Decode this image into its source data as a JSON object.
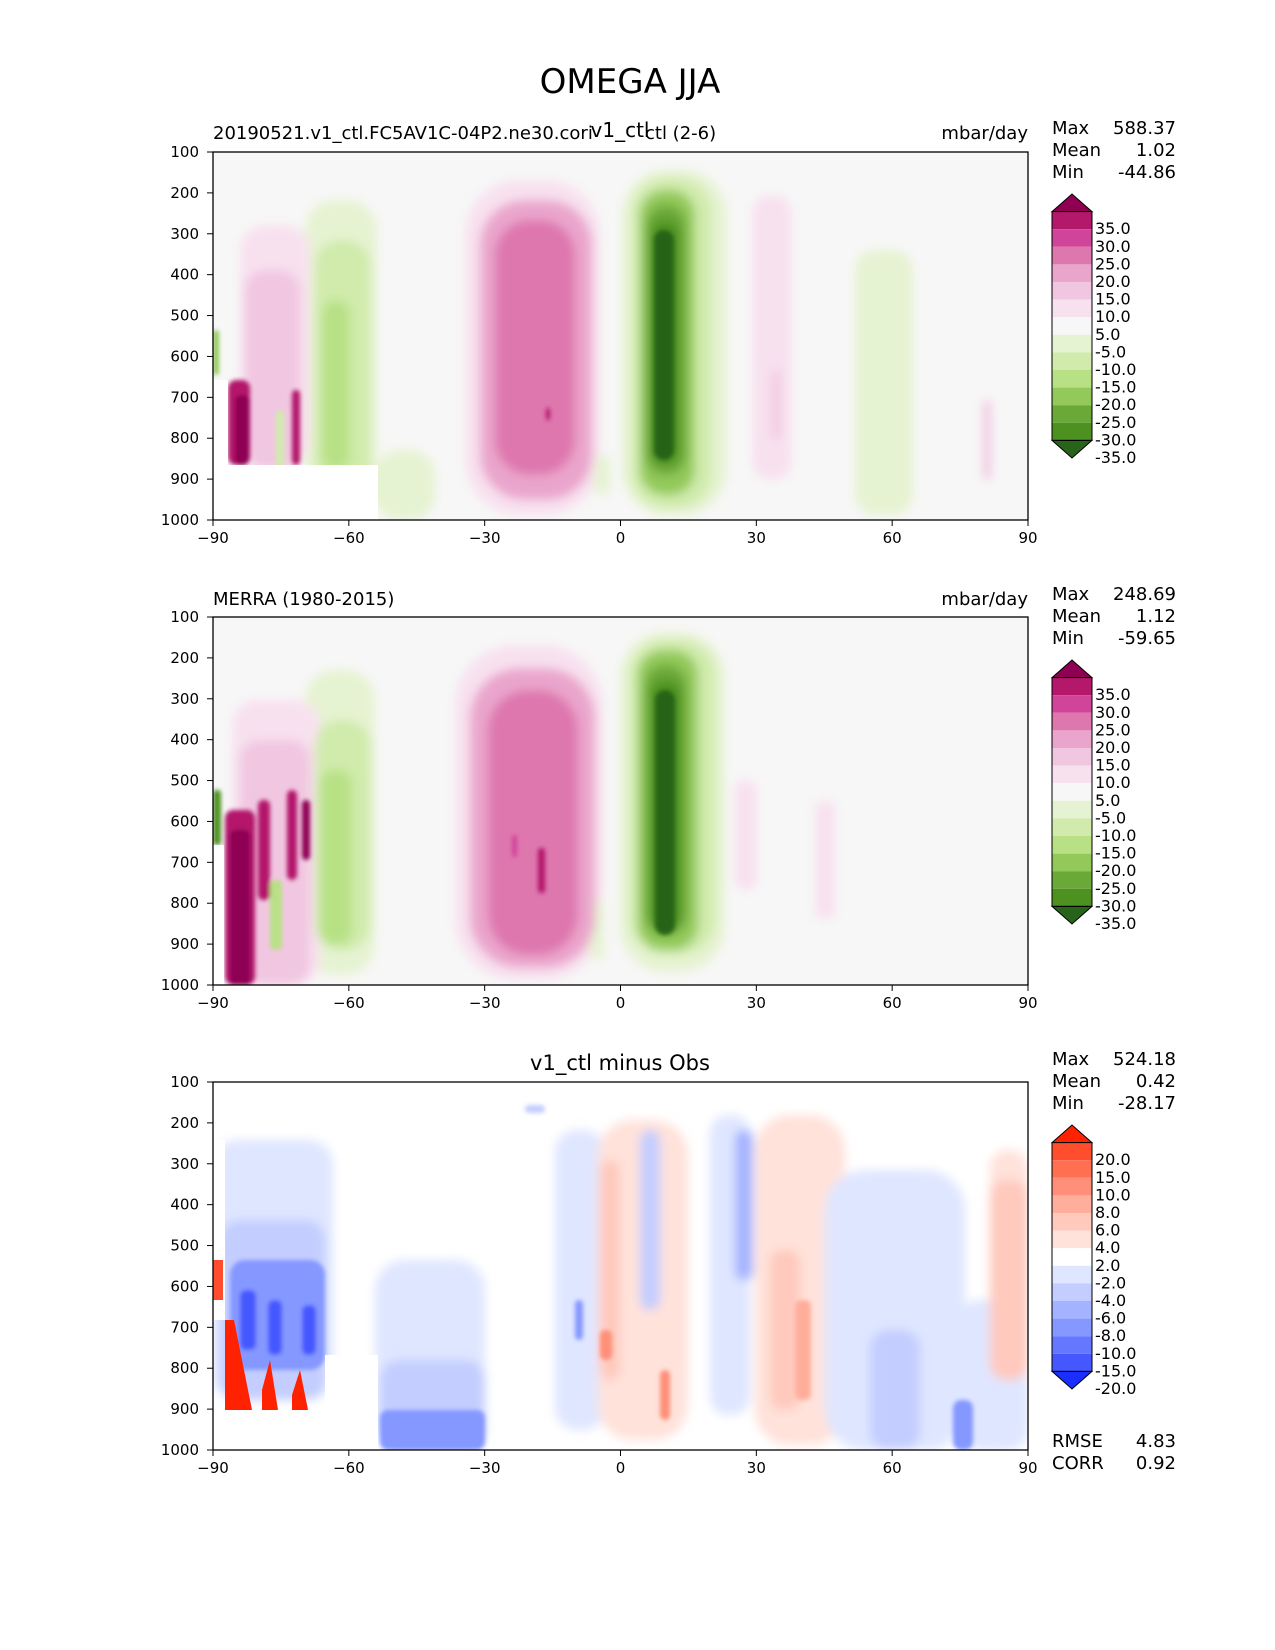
{
  "figure_title": "OMEGA JJA",
  "panels": [
    {
      "id": "model",
      "title_left_a": "20190521.v1_ctl.FC5AV1C-04P2.ne30.cori",
      "title_left_b": "ctl (2-6)",
      "title_center": "v1_ctl",
      "title_right": "mbar/day",
      "stats": [
        {
          "label": "Max",
          "value": "588.37"
        },
        {
          "label": "Mean",
          "value": "1.02"
        },
        {
          "label": "Min",
          "value": "-44.86"
        }
      ],
      "colorbar": "wet"
    },
    {
      "id": "obs",
      "title_left_a": "MERRA (1980-2015)",
      "title_left_b": "",
      "title_center": "",
      "title_right": "mbar/day",
      "stats": [
        {
          "label": "Max",
          "value": "248.69"
        },
        {
          "label": "Mean",
          "value": "1.12"
        },
        {
          "label": "Min",
          "value": "-59.65"
        }
      ],
      "colorbar": "wet"
    },
    {
      "id": "diff",
      "title_left_a": "",
      "title_left_b": "",
      "title_center": "v1_ctl minus Obs",
      "title_right": "",
      "stats": [
        {
          "label": "Max",
          "value": "524.18"
        },
        {
          "label": "Mean",
          "value": "0.42"
        },
        {
          "label": "Min",
          "value": "-28.17"
        }
      ],
      "extra_stats": [
        {
          "label": "RMSE",
          "value": "4.83"
        },
        {
          "label": "CORR",
          "value": "0.92"
        }
      ],
      "colorbar": "diff"
    }
  ],
  "colorbars": {
    "wet": {
      "labels": [
        "35.0",
        "30.0",
        "25.0",
        "20.0",
        "15.0",
        "10.0",
        "5.0",
        "-5.0",
        "-10.0",
        "-15.0",
        "-20.0",
        "-25.0",
        "-30.0",
        "-35.0"
      ],
      "colors": [
        "#8e0152",
        "#b3186a",
        "#d0449a",
        "#de77ae",
        "#eaa5cc",
        "#f1c6e1",
        "#f8e1ef",
        "#f7f7f7",
        "#e6f3d2",
        "#d0ebac",
        "#b8e186",
        "#93c95a",
        "#6aa838",
        "#4d9221",
        "#276419"
      ]
    },
    "diff": {
      "labels": [
        "20.0",
        "15.0",
        "10.0",
        "8.0",
        "6.0",
        "4.0",
        "2.0",
        "-2.0",
        "-4.0",
        "-6.0",
        "-8.0",
        "-10.0",
        "-15.0",
        "-20.0"
      ],
      "colors": [
        "#ff2200",
        "#ff4d2e",
        "#ff6f52",
        "#ff8f78",
        "#ffae9c",
        "#ffc9bd",
        "#ffe2da",
        "#ffffff",
        "#dfe6ff",
        "#c3cdff",
        "#a4b3ff",
        "#8598ff",
        "#6677ff",
        "#4558ff",
        "#1a2eff"
      ]
    }
  },
  "chart_data": [
    {
      "type": "heatmap",
      "title": "v1_ctl",
      "units": "mbar/day",
      "x_ticks": [
        "−90",
        "−60",
        "−30",
        "0",
        "30",
        "60",
        "90"
      ],
      "y_ticks": [
        "100",
        "200",
        "300",
        "400",
        "500",
        "600",
        "700",
        "800",
        "900",
        "1000"
      ],
      "xlim": [
        -90,
        90
      ],
      "ylim": [
        1000,
        100
      ],
      "features": [
        {
          "lat": [
            -32,
            -12
          ],
          "p": [
            250,
            900
          ],
          "value": 25
        },
        {
          "lat": [
            5,
            12
          ],
          "p": [
            250,
            880
          ],
          "value": -35
        },
        {
          "lat": [
            -68,
            -62
          ],
          "p": [
            300,
            850
          ],
          "value": -20
        },
        {
          "lat": [
            -88,
            -84
          ],
          "p": [
            700,
            850
          ],
          "value": 35
        },
        {
          "lat": [
            28,
            36
          ],
          "p": [
            200,
            880
          ],
          "value": 5
        },
        {
          "lat": [
            51,
            60
          ],
          "p": [
            250,
            1000
          ],
          "value": -5
        }
      ]
    },
    {
      "type": "heatmap",
      "title": "MERRA (1980-2015)",
      "units": "mbar/day",
      "x_ticks": [
        "−90",
        "−60",
        "−30",
        "0",
        "30",
        "60",
        "90"
      ],
      "y_ticks": [
        "100",
        "200",
        "300",
        "400",
        "500",
        "600",
        "700",
        "800",
        "900",
        "1000"
      ],
      "xlim": [
        -90,
        90
      ],
      "ylim": [
        1000,
        100
      ],
      "features": [
        {
          "lat": [
            -32,
            -12
          ],
          "p": [
            250,
            900
          ],
          "value": 25
        },
        {
          "lat": [
            5,
            12
          ],
          "p": [
            250,
            900
          ],
          "value": -35
        },
        {
          "lat": [
            -68,
            -62
          ],
          "p": [
            300,
            850
          ],
          "value": -20
        },
        {
          "lat": [
            -89,
            -84
          ],
          "p": [
            650,
            1000
          ],
          "value": 35
        }
      ]
    },
    {
      "type": "heatmap",
      "title": "v1_ctl minus Obs",
      "x_ticks": [
        "−90",
        "−60",
        "−30",
        "0",
        "30",
        "60",
        "90"
      ],
      "y_ticks": [
        "100",
        "200",
        "300",
        "400",
        "500",
        "600",
        "700",
        "800",
        "900",
        "1000"
      ],
      "xlim": [
        -90,
        90
      ],
      "ylim": [
        1000,
        100
      ],
      "features": [
        {
          "lat": [
            -87,
            -80
          ],
          "p": [
            680,
            850
          ],
          "value": 20
        },
        {
          "lat": [
            -84,
            -68
          ],
          "p": [
            500,
            850
          ],
          "value": -10
        },
        {
          "lat": [
            -54,
            -30
          ],
          "p": [
            850,
            1000
          ],
          "value": -6
        },
        {
          "lat": [
            -10,
            -6
          ],
          "p": [
            300,
            850
          ],
          "value": -4
        },
        {
          "lat": [
            2,
            8
          ],
          "p": [
            300,
            900
          ],
          "value": 6
        },
        {
          "lat": [
            35,
            40
          ],
          "p": [
            600,
            950
          ],
          "value": 6
        },
        {
          "lat": [
            86,
            90
          ],
          "p": [
            300,
            950
          ],
          "value": 4
        },
        {
          "lat": [
            45,
            70
          ],
          "p": [
            850,
            1000
          ],
          "value": -4
        }
      ]
    }
  ]
}
